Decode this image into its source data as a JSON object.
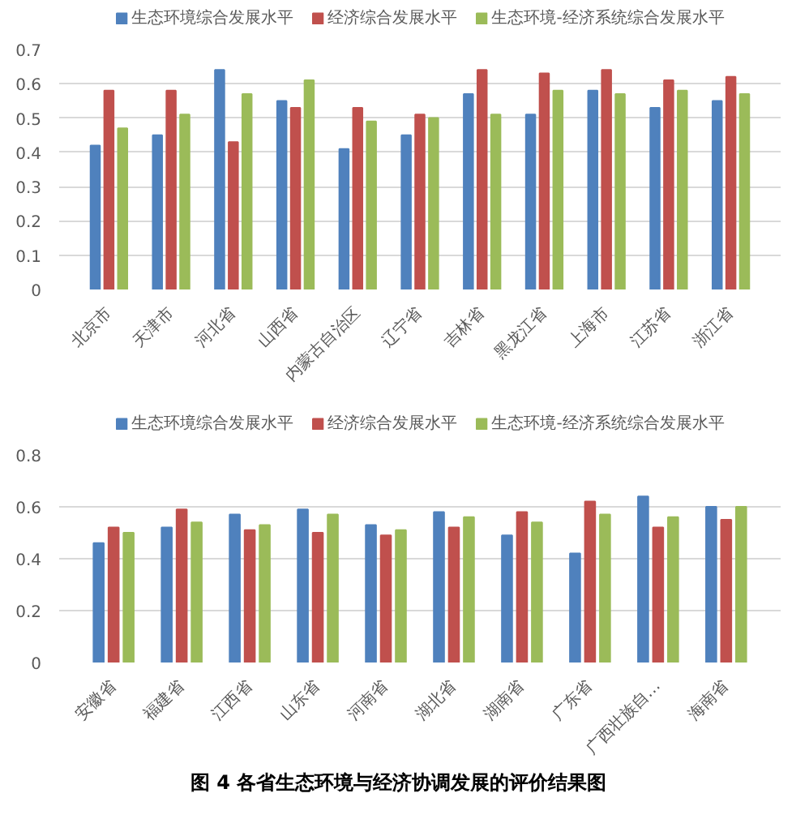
{
  "chart_data": [
    {
      "type": "bar",
      "categories": [
        "北京市",
        "天津市",
        "河北省",
        "山西省",
        "内蒙古自治区",
        "辽宁省",
        "吉林省",
        "黑龙江省",
        "上海市",
        "江苏省",
        "浙江省"
      ],
      "series": [
        {
          "name": "生态环境综合发展水平",
          "color": "#4f81bd",
          "values": [
            0.42,
            0.45,
            0.64,
            0.55,
            0.41,
            0.45,
            0.57,
            0.51,
            0.58,
            0.53,
            0.55
          ]
        },
        {
          "name": "经济综合发展水平",
          "color": "#c0504d",
          "values": [
            0.58,
            0.58,
            0.43,
            0.53,
            0.53,
            0.51,
            0.64,
            0.63,
            0.64,
            0.61,
            0.62
          ]
        },
        {
          "name": "生态环境-经济系统综合发展水平",
          "color": "#9bbb59",
          "values": [
            0.47,
            0.51,
            0.57,
            0.61,
            0.49,
            0.5,
            0.51,
            0.58,
            0.57,
            0.58,
            0.57
          ]
        }
      ],
      "ylim": [
        0,
        0.7
      ],
      "yticks": [
        0,
        0.1,
        0.2,
        0.3,
        0.4,
        0.5,
        0.6,
        0.7
      ],
      "grid": "y",
      "legend": "top"
    },
    {
      "type": "bar",
      "categories": [
        "安徽省",
        "福建省",
        "江西省",
        "山东省",
        "河南省",
        "湖北省",
        "湖南省",
        "广东省",
        "广西壮族自…",
        "海南省"
      ],
      "series": [
        {
          "name": "生态环境综合发展水平",
          "color": "#4f81bd",
          "values": [
            0.46,
            0.52,
            0.57,
            0.59,
            0.53,
            0.58,
            0.49,
            0.42,
            0.64,
            0.6
          ]
        },
        {
          "name": "经济综合发展水平",
          "color": "#c0504d",
          "values": [
            0.52,
            0.59,
            0.51,
            0.5,
            0.49,
            0.52,
            0.58,
            0.62,
            0.52,
            0.55
          ]
        },
        {
          "name": "生态环境-经济系统综合发展水平",
          "color": "#9bbb59",
          "values": [
            0.5,
            0.54,
            0.53,
            0.57,
            0.51,
            0.56,
            0.54,
            0.57,
            0.56,
            0.6
          ]
        }
      ],
      "ylim": [
        0,
        0.8
      ],
      "yticks": [
        0,
        0.2,
        0.4,
        0.6,
        0.8
      ],
      "grid": "y",
      "legend": "top",
      "annotations": [
        "图 4   各省生态环境与经济协调发展的评价结果图"
      ]
    }
  ]
}
